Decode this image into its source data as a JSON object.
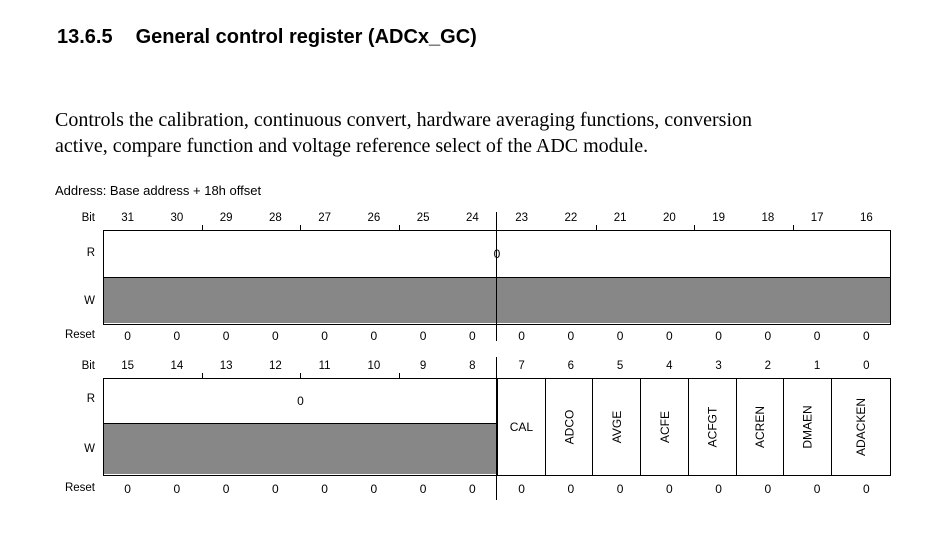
{
  "page": {
    "section_number": "13.6.5",
    "section_title": "General control register (ADCx_GC)",
    "description_line1": "Controls the calibration, continuous convert, hardware averaging functions, conversion",
    "description_line2": "active, compare function and voltage reference select of the ADC module.",
    "address_line": "Address: Base address + 18h offset"
  },
  "colors": {
    "reserved_fill": "#878787",
    "line": "#000000",
    "text": "#000000"
  },
  "register": {
    "row_labels": {
      "bit": "Bit",
      "read": "R",
      "write": "W",
      "reset": "Reset"
    },
    "upper_word": {
      "bit_numbers": [
        "31",
        "30",
        "29",
        "28",
        "27",
        "26",
        "25",
        "24",
        "23",
        "22",
        "21",
        "20",
        "19",
        "18",
        "17",
        "16"
      ],
      "read_value": "0",
      "reset_values": [
        "0",
        "0",
        "0",
        "0",
        "0",
        "0",
        "0",
        "0",
        "0",
        "0",
        "0",
        "0",
        "0",
        "0",
        "0",
        "0"
      ]
    },
    "lower_word": {
      "bit_numbers": [
        "15",
        "14",
        "13",
        "12",
        "11",
        "10",
        "9",
        "8",
        "7",
        "6",
        "5",
        "4",
        "3",
        "2",
        "1",
        "0"
      ],
      "read_value": "0",
      "fields": [
        {
          "name": "CAL",
          "bit": "7",
          "orientation": "horizontal"
        },
        {
          "name": "ADCO",
          "bit": "6",
          "orientation": "vertical"
        },
        {
          "name": "AVGE",
          "bit": "5",
          "orientation": "vertical"
        },
        {
          "name": "ACFE",
          "bit": "4",
          "orientation": "vertical"
        },
        {
          "name": "ACFGT",
          "bit": "3",
          "orientation": "vertical"
        },
        {
          "name": "ACREN",
          "bit": "2",
          "orientation": "vertical"
        },
        {
          "name": "DMAEN",
          "bit": "1",
          "orientation": "vertical"
        },
        {
          "name": "ADACKEN",
          "bit": "0",
          "orientation": "vertical"
        }
      ],
      "reset_values": [
        "0",
        "0",
        "0",
        "0",
        "0",
        "0",
        "0",
        "0",
        "0",
        "0",
        "0",
        "0",
        "0",
        "0",
        "0",
        "0"
      ]
    }
  }
}
